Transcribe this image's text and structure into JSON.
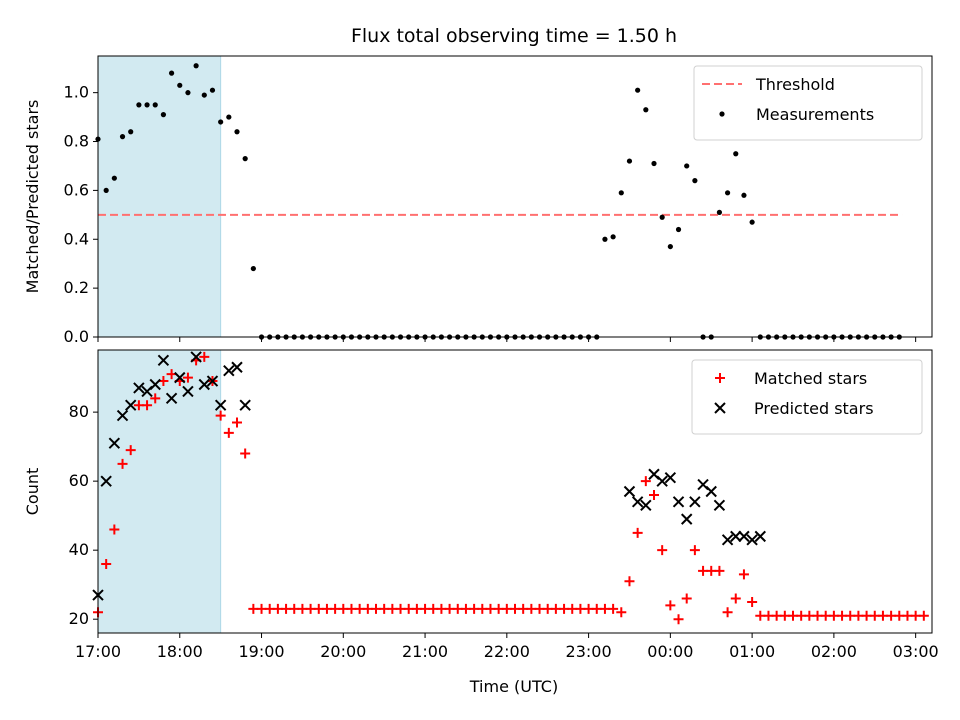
{
  "chart_data": [
    {
      "type": "scatter",
      "title": "Flux total observing time = 1.50 h",
      "xlabel": "",
      "ylabel": "Matched/Predicted stars",
      "x_axis": "time_utc",
      "xlim": [
        "17:00",
        "03:12"
      ],
      "ylim": [
        0,
        1.15
      ],
      "yticks": [
        0.0,
        0.2,
        0.4,
        0.6,
        0.8,
        1.0
      ],
      "ytick_labels": [
        "0.0",
        "0.2",
        "0.4",
        "0.6",
        "0.8",
        "1.0"
      ],
      "shaded_span": {
        "start": "17:00",
        "end": "18:30",
        "color": "#add8e6"
      },
      "legend": {
        "position": "top-right",
        "entries": [
          "Threshold",
          "Measurements"
        ]
      },
      "threshold": {
        "name": "Threshold",
        "value": 0.5,
        "color": "#ff7070",
        "style": "dashed",
        "x_range": [
          "17:00",
          "02:50"
        ]
      },
      "series": [
        {
          "name": "Measurements",
          "color": "#000000",
          "marker": "dot",
          "points": [
            [
              "17:00",
              0.81
            ],
            [
              "17:06",
              0.6
            ],
            [
              "17:12",
              0.65
            ],
            [
              "17:18",
              0.82
            ],
            [
              "17:24",
              0.84
            ],
            [
              "17:30",
              0.95
            ],
            [
              "17:36",
              0.95
            ],
            [
              "17:42",
              0.95
            ],
            [
              "17:48",
              0.91
            ],
            [
              "17:54",
              1.08
            ],
            [
              "18:00",
              1.03
            ],
            [
              "18:06",
              1.0
            ],
            [
              "18:12",
              1.11
            ],
            [
              "18:18",
              0.99
            ],
            [
              "18:24",
              1.01
            ],
            [
              "18:30",
              0.88
            ],
            [
              "18:36",
              0.9
            ],
            [
              "18:42",
              0.84
            ],
            [
              "18:48",
              0.73
            ],
            [
              "18:54",
              0.28
            ],
            [
              "19:00",
              0.0
            ],
            [
              "19:06",
              0.0
            ],
            [
              "19:12",
              0.0
            ],
            [
              "19:18",
              0.0
            ],
            [
              "19:24",
              0.0
            ],
            [
              "19:30",
              0.0
            ],
            [
              "19:36",
              0.0
            ],
            [
              "19:42",
              0.0
            ],
            [
              "19:48",
              0.0
            ],
            [
              "19:54",
              0.0
            ],
            [
              "20:00",
              0.0
            ],
            [
              "20:06",
              0.0
            ],
            [
              "20:12",
              0.0
            ],
            [
              "20:18",
              0.0
            ],
            [
              "20:24",
              0.0
            ],
            [
              "20:30",
              0.0
            ],
            [
              "20:36",
              0.0
            ],
            [
              "20:42",
              0.0
            ],
            [
              "20:48",
              0.0
            ],
            [
              "20:54",
              0.0
            ],
            [
              "21:00",
              0.0
            ],
            [
              "21:06",
              0.0
            ],
            [
              "21:12",
              0.0
            ],
            [
              "21:18",
              0.0
            ],
            [
              "21:24",
              0.0
            ],
            [
              "21:30",
              0.0
            ],
            [
              "21:36",
              0.0
            ],
            [
              "21:42",
              0.0
            ],
            [
              "21:48",
              0.0
            ],
            [
              "21:54",
              0.0
            ],
            [
              "22:00",
              0.0
            ],
            [
              "22:06",
              0.0
            ],
            [
              "22:12",
              0.0
            ],
            [
              "22:18",
              0.0
            ],
            [
              "22:24",
              0.0
            ],
            [
              "22:30",
              0.0
            ],
            [
              "22:36",
              0.0
            ],
            [
              "22:42",
              0.0
            ],
            [
              "22:48",
              0.0
            ],
            [
              "22:54",
              0.0
            ],
            [
              "23:00",
              0.0
            ],
            [
              "23:06",
              0.0
            ],
            [
              "23:12",
              0.4
            ],
            [
              "23:18",
              0.41
            ],
            [
              "23:24",
              0.59
            ],
            [
              "23:30",
              0.72
            ],
            [
              "23:36",
              1.01
            ],
            [
              "23:42",
              0.93
            ],
            [
              "23:48",
              0.71
            ],
            [
              "23:54",
              0.49
            ],
            [
              "00:00",
              0.37
            ],
            [
              "00:06",
              0.44
            ],
            [
              "00:12",
              0.7
            ],
            [
              "00:18",
              0.64
            ],
            [
              "00:24",
              0.0
            ],
            [
              "00:30",
              0.0
            ],
            [
              "00:36",
              0.51
            ],
            [
              "00:42",
              0.59
            ],
            [
              "00:48",
              0.75
            ],
            [
              "00:54",
              0.58
            ],
            [
              "01:00",
              0.47
            ],
            [
              "01:06",
              0.0
            ],
            [
              "01:12",
              0.0
            ],
            [
              "01:18",
              0.0
            ],
            [
              "01:24",
              0.0
            ],
            [
              "01:30",
              0.0
            ],
            [
              "01:36",
              0.0
            ],
            [
              "01:42",
              0.0
            ],
            [
              "01:48",
              0.0
            ],
            [
              "01:54",
              0.0
            ],
            [
              "02:00",
              0.0
            ],
            [
              "02:06",
              0.0
            ],
            [
              "02:12",
              0.0
            ],
            [
              "02:18",
              0.0
            ],
            [
              "02:24",
              0.0
            ],
            [
              "02:30",
              0.0
            ],
            [
              "02:36",
              0.0
            ],
            [
              "02:42",
              0.0
            ],
            [
              "02:48",
              0.0
            ]
          ]
        }
      ]
    },
    {
      "type": "scatter",
      "title": "",
      "xlabel": "Time (UTC)",
      "ylabel": "Count",
      "x_axis": "time_utc",
      "xlim": [
        "17:00",
        "03:12"
      ],
      "ylim": [
        16,
        98
      ],
      "yticks": [
        20,
        40,
        60,
        80
      ],
      "ytick_labels": [
        "20",
        "40",
        "60",
        "80"
      ],
      "xticks": [
        "17:00",
        "18:00",
        "19:00",
        "20:00",
        "21:00",
        "22:00",
        "23:00",
        "00:00",
        "01:00",
        "02:00",
        "03:00"
      ],
      "shaded_span": {
        "start": "17:00",
        "end": "18:30",
        "color": "#add8e6"
      },
      "legend": {
        "position": "top-right",
        "entries": [
          "Matched stars",
          "Predicted stars"
        ]
      },
      "series": [
        {
          "name": "Matched stars",
          "color": "#ff0000",
          "marker": "plus",
          "points": [
            [
              "17:00",
              22
            ],
            [
              "17:06",
              36
            ],
            [
              "17:12",
              46
            ],
            [
              "17:18",
              65
            ],
            [
              "17:24",
              69
            ],
            [
              "17:30",
              82
            ],
            [
              "17:36",
              82
            ],
            [
              "17:42",
              84
            ],
            [
              "17:48",
              89
            ],
            [
              "17:54",
              91
            ],
            [
              "18:00",
              89
            ],
            [
              "18:06",
              90
            ],
            [
              "18:12",
              95
            ],
            [
              "18:18",
              96
            ],
            [
              "18:24",
              89
            ],
            [
              "18:30",
              79
            ],
            [
              "18:36",
              74
            ],
            [
              "18:42",
              77
            ],
            [
              "18:48",
              68
            ],
            [
              "18:54",
              23
            ],
            [
              "19:00",
              23
            ],
            [
              "19:06",
              23
            ],
            [
              "19:12",
              23
            ],
            [
              "19:18",
              23
            ],
            [
              "19:24",
              23
            ],
            [
              "19:30",
              23
            ],
            [
              "19:36",
              23
            ],
            [
              "19:42",
              23
            ],
            [
              "19:48",
              23
            ],
            [
              "19:54",
              23
            ],
            [
              "20:00",
              23
            ],
            [
              "20:06",
              23
            ],
            [
              "20:12",
              23
            ],
            [
              "20:18",
              23
            ],
            [
              "20:24",
              23
            ],
            [
              "20:30",
              23
            ],
            [
              "20:36",
              23
            ],
            [
              "20:42",
              23
            ],
            [
              "20:48",
              23
            ],
            [
              "20:54",
              23
            ],
            [
              "21:00",
              23
            ],
            [
              "21:06",
              23
            ],
            [
              "21:12",
              23
            ],
            [
              "21:18",
              23
            ],
            [
              "21:24",
              23
            ],
            [
              "21:30",
              23
            ],
            [
              "21:36",
              23
            ],
            [
              "21:42",
              23
            ],
            [
              "21:48",
              23
            ],
            [
              "21:54",
              23
            ],
            [
              "22:00",
              23
            ],
            [
              "22:06",
              23
            ],
            [
              "22:12",
              23
            ],
            [
              "22:18",
              23
            ],
            [
              "22:24",
              23
            ],
            [
              "22:30",
              23
            ],
            [
              "22:36",
              23
            ],
            [
              "22:42",
              23
            ],
            [
              "22:48",
              23
            ],
            [
              "22:54",
              23
            ],
            [
              "23:00",
              23
            ],
            [
              "23:06",
              23
            ],
            [
              "23:12",
              23
            ],
            [
              "23:18",
              23
            ],
            [
              "23:24",
              22
            ],
            [
              "23:30",
              31
            ],
            [
              "23:36",
              45
            ],
            [
              "23:42",
              60
            ],
            [
              "23:48",
              56
            ],
            [
              "23:54",
              40
            ],
            [
              "00:00",
              24
            ],
            [
              "00:06",
              20
            ],
            [
              "00:12",
              26
            ],
            [
              "00:18",
              40
            ],
            [
              "00:24",
              34
            ],
            [
              "00:30",
              34
            ],
            [
              "00:36",
              34
            ],
            [
              "00:42",
              22
            ],
            [
              "00:48",
              26
            ],
            [
              "00:54",
              33
            ],
            [
              "01:00",
              25
            ],
            [
              "01:06",
              21
            ],
            [
              "01:12",
              21
            ],
            [
              "01:18",
              21
            ],
            [
              "01:24",
              21
            ],
            [
              "01:30",
              21
            ],
            [
              "01:36",
              21
            ],
            [
              "01:42",
              21
            ],
            [
              "01:48",
              21
            ],
            [
              "01:54",
              21
            ],
            [
              "02:00",
              21
            ],
            [
              "02:06",
              21
            ],
            [
              "02:12",
              21
            ],
            [
              "02:18",
              21
            ],
            [
              "02:24",
              21
            ],
            [
              "02:30",
              21
            ],
            [
              "02:36",
              21
            ],
            [
              "02:42",
              21
            ],
            [
              "02:48",
              21
            ],
            [
              "02:54",
              21
            ],
            [
              "03:00",
              21
            ],
            [
              "03:06",
              21
            ]
          ]
        },
        {
          "name": "Predicted stars",
          "color": "#000000",
          "marker": "x",
          "points": [
            [
              "17:00",
              27
            ],
            [
              "17:06",
              60
            ],
            [
              "17:12",
              71
            ],
            [
              "17:18",
              79
            ],
            [
              "17:24",
              82
            ],
            [
              "17:30",
              87
            ],
            [
              "17:36",
              86
            ],
            [
              "17:42",
              88
            ],
            [
              "17:48",
              95
            ],
            [
              "17:54",
              84
            ],
            [
              "18:00",
              90
            ],
            [
              "18:06",
              86
            ],
            [
              "18:12",
              96
            ],
            [
              "18:18",
              88
            ],
            [
              "18:24",
              89
            ],
            [
              "18:30",
              82
            ],
            [
              "18:36",
              92
            ],
            [
              "18:42",
              93
            ],
            [
              "18:48",
              82
            ],
            [
              "23:30",
              57
            ],
            [
              "23:36",
              54
            ],
            [
              "23:42",
              53
            ],
            [
              "23:48",
              62
            ],
            [
              "23:54",
              60
            ],
            [
              "00:00",
              61
            ],
            [
              "00:06",
              54
            ],
            [
              "00:12",
              49
            ],
            [
              "00:18",
              54
            ],
            [
              "00:24",
              59
            ],
            [
              "00:30",
              57
            ],
            [
              "00:36",
              53
            ],
            [
              "00:42",
              43
            ],
            [
              "00:48",
              44
            ],
            [
              "00:54",
              44
            ],
            [
              "01:00",
              43
            ],
            [
              "01:06",
              44
            ]
          ]
        }
      ]
    }
  ]
}
